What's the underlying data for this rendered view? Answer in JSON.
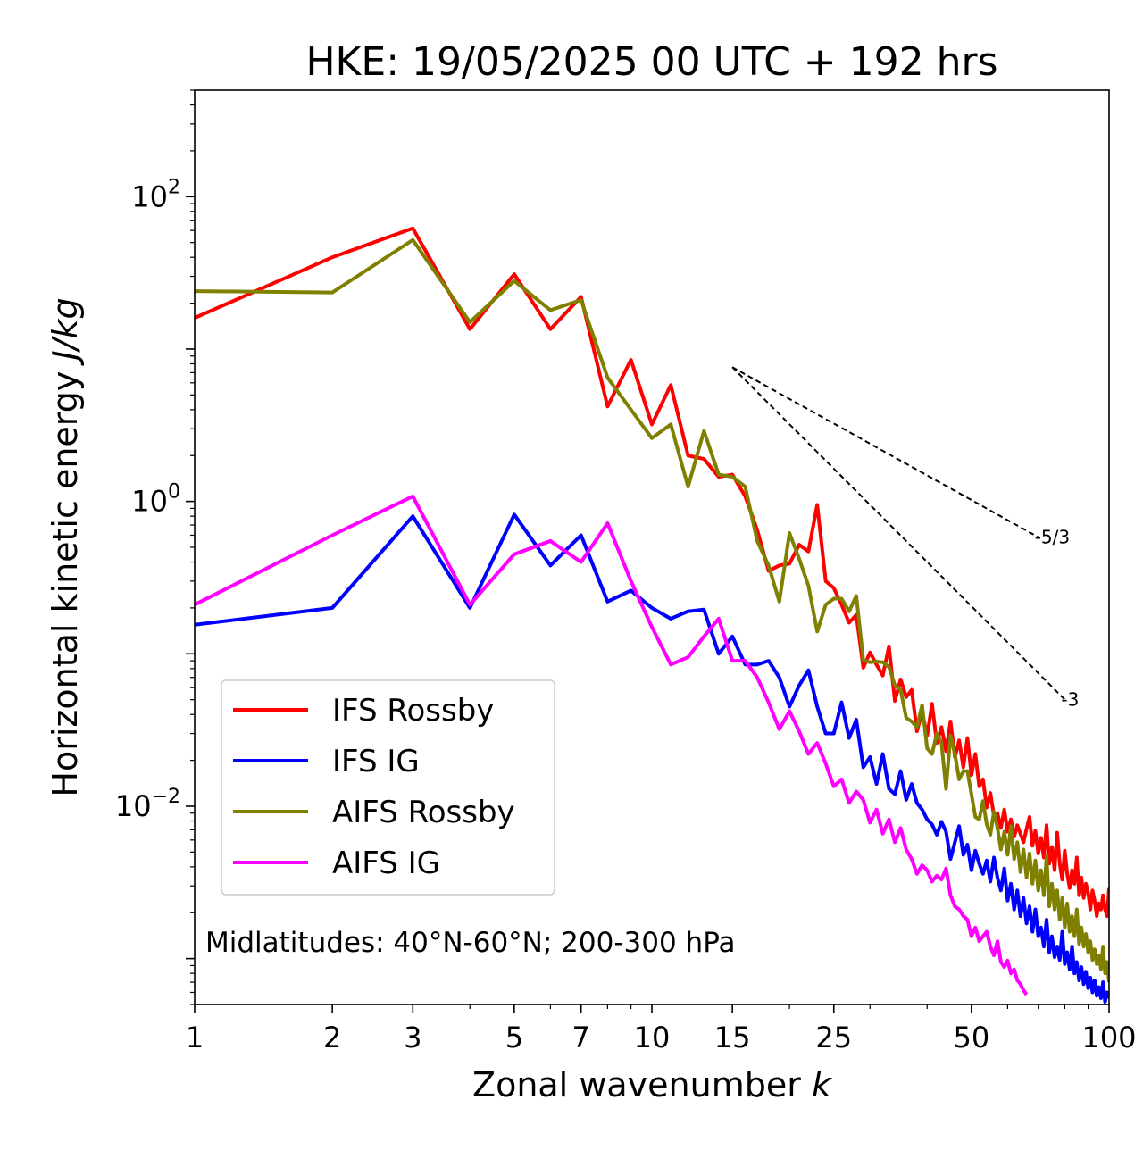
{
  "chart_data": {
    "type": "line",
    "title": "HKE: 19/05/2025 00 UTC + 192 hrs",
    "xlabel": "Zonal wavenumber",
    "xlabel_var": "k",
    "ylabel": "Horizontal kinetic energy",
    "ylabel_unit": "J/kg",
    "xscale": "log",
    "yscale": "log",
    "xlim": [
      1,
      100
    ],
    "ylim": [
      0.0005,
      500
    ],
    "x_ticks": [
      1,
      2,
      3,
      5,
      7,
      10,
      15,
      25,
      50,
      100
    ],
    "x_tick_labels": [
      "1",
      "2",
      "3",
      "5",
      "7",
      "10",
      "15",
      "25",
      "50",
      "100"
    ],
    "y_ticks": [
      0.01,
      1,
      100
    ],
    "y_tick_labels": [
      {
        "base": "10",
        "exp": "−2"
      },
      {
        "base": "10",
        "exp": "0"
      },
      {
        "base": "10",
        "exp": "2"
      }
    ],
    "annotation": "Midlatitudes: 40°N-60°N; 200-300 hPa",
    "legend_position": "lower-left",
    "grid": false,
    "reference_slopes": [
      {
        "label": "-5/3",
        "exponent": -1.6667,
        "x_start": 15,
        "x_end": 70,
        "y_start": 7.6
      },
      {
        "label": "-3",
        "exponent": -3,
        "x_start": 15,
        "x_end": 80,
        "y_start": 7.6
      }
    ],
    "series": [
      {
        "name": "IFS Rossby",
        "color": "#ff0000",
        "x": [
          1,
          2,
          3,
          4,
          5,
          6,
          7,
          8,
          9,
          10,
          11,
          12,
          13,
          14,
          15,
          16,
          17,
          18,
          19,
          20,
          21,
          22,
          23,
          24,
          25,
          26,
          27,
          28,
          29,
          30,
          31,
          32,
          33,
          34,
          35,
          36,
          37,
          38,
          39,
          40,
          41,
          42,
          43,
          44,
          45,
          46,
          47,
          48,
          49,
          50,
          51,
          52,
          53,
          54,
          55,
          56,
          57,
          58,
          59,
          60,
          61,
          62,
          63,
          64,
          65,
          66,
          67,
          68,
          69,
          70,
          71,
          72,
          73,
          74,
          75,
          76,
          77,
          78,
          79,
          80,
          81,
          82,
          83,
          84,
          85,
          86,
          87,
          88,
          89,
          90,
          91,
          92,
          93,
          94,
          95,
          96,
          97,
          98,
          99,
          100
        ],
        "y": [
          16,
          40,
          62,
          13.5,
          31,
          13.5,
          22,
          4.2,
          8.5,
          3.2,
          5.8,
          2.0,
          1.9,
          1.45,
          1.5,
          1.08,
          0.65,
          0.35,
          0.38,
          0.39,
          0.52,
          0.47,
          0.95,
          0.3,
          0.27,
          0.21,
          0.16,
          0.18,
          0.081,
          0.102,
          0.085,
          0.072,
          0.112,
          0.049,
          0.068,
          0.052,
          0.058,
          0.031,
          0.042,
          0.029,
          0.047,
          0.026,
          0.033,
          0.023,
          0.036,
          0.021,
          0.027,
          0.018,
          0.028,
          0.016,
          0.022,
          0.0135,
          0.015,
          0.0098,
          0.0122,
          0.0087,
          0.009,
          0.0072,
          0.0095,
          0.0068,
          0.0082,
          0.0063,
          0.0075,
          0.0066,
          0.0058,
          0.0071,
          0.0085,
          0.0055,
          0.0069,
          0.0049,
          0.0062,
          0.0046,
          0.0075,
          0.0042,
          0.0054,
          0.0038,
          0.0067,
          0.0042,
          0.0033,
          0.0051,
          0.0036,
          0.0029,
          0.0038,
          0.0031,
          0.0046,
          0.0026,
          0.0034,
          0.0025,
          0.0031,
          0.0027,
          0.0021,
          0.0028,
          0.0024,
          0.0019,
          0.0023,
          0.0021,
          0.0026,
          0.0021,
          0.0019,
          0.0029
        ]
      },
      {
        "name": "IFS IG",
        "color": "#0000ff",
        "x": [
          1,
          2,
          3,
          4,
          5,
          6,
          7,
          8,
          9,
          10,
          11,
          12,
          13,
          14,
          15,
          16,
          17,
          18,
          19,
          20,
          21,
          22,
          23,
          24,
          25,
          26,
          27,
          28,
          29,
          30,
          31,
          32,
          33,
          34,
          35,
          36,
          37,
          38,
          39,
          40,
          41,
          42,
          43,
          44,
          45,
          46,
          47,
          48,
          49,
          50,
          51,
          52,
          53,
          54,
          55,
          56,
          57,
          58,
          59,
          60,
          61,
          62,
          63,
          64,
          65,
          66,
          67,
          68,
          69,
          70,
          71,
          72,
          73,
          74,
          75,
          76,
          77,
          78,
          79,
          80,
          81,
          82,
          83,
          84,
          85,
          86,
          87,
          88,
          89,
          90,
          91,
          92,
          93,
          94,
          95,
          96,
          97,
          98,
          99,
          100
        ],
        "y": [
          0.155,
          0.2,
          0.8,
          0.2,
          0.82,
          0.38,
          0.6,
          0.22,
          0.26,
          0.2,
          0.17,
          0.19,
          0.195,
          0.1,
          0.13,
          0.085,
          0.085,
          0.09,
          0.07,
          0.045,
          0.062,
          0.078,
          0.045,
          0.03,
          0.03,
          0.048,
          0.028,
          0.037,
          0.018,
          0.021,
          0.014,
          0.022,
          0.013,
          0.012,
          0.017,
          0.011,
          0.014,
          0.0105,
          0.0095,
          0.0082,
          0.0076,
          0.0065,
          0.0079,
          0.0068,
          0.0045,
          0.0058,
          0.0074,
          0.0048,
          0.0056,
          0.0038,
          0.0051,
          0.0042,
          0.0036,
          0.0044,
          0.0032,
          0.0046,
          0.0034,
          0.0028,
          0.0039,
          0.0024,
          0.0031,
          0.0021,
          0.0028,
          0.0019,
          0.0025,
          0.0017,
          0.0022,
          0.0015,
          0.0021,
          0.0014,
          0.0016,
          0.0012,
          0.0018,
          0.0011,
          0.0014,
          0.00102,
          0.0012,
          0.00098,
          0.0015,
          0.00092,
          0.0011,
          0.00085,
          0.0012,
          0.0008,
          0.00095,
          0.00072,
          0.00088,
          0.00068,
          0.00082,
          0.00064,
          0.00075,
          0.0006,
          0.00072,
          0.00057,
          0.00065,
          0.00055,
          0.0007,
          0.00052,
          0.0006,
          0.00055
        ]
      },
      {
        "name": "AIFS Rossby",
        "color": "#808000",
        "x": [
          1,
          2,
          3,
          4,
          5,
          6,
          7,
          8,
          9,
          10,
          11,
          12,
          13,
          14,
          15,
          16,
          17,
          18,
          19,
          20,
          21,
          22,
          23,
          24,
          25,
          26,
          27,
          28,
          29,
          30,
          31,
          32,
          33,
          34,
          35,
          36,
          37,
          38,
          39,
          40,
          41,
          42,
          43,
          44,
          45,
          46,
          47,
          48,
          49,
          50,
          51,
          52,
          53,
          54,
          55,
          56,
          57,
          58,
          59,
          60,
          61,
          62,
          63,
          64,
          65,
          66,
          67,
          68,
          69,
          70,
          71,
          72,
          73,
          74,
          75,
          76,
          77,
          78,
          79,
          80,
          81,
          82,
          83,
          84,
          85,
          86,
          87,
          88,
          89,
          90,
          91,
          92,
          93,
          94,
          95,
          96,
          97,
          98,
          99,
          100
        ],
        "y": [
          24,
          23.5,
          52,
          15,
          28,
          18,
          21,
          6.5,
          4.0,
          2.6,
          3.2,
          1.25,
          2.9,
          1.5,
          1.45,
          1.25,
          0.55,
          0.38,
          0.22,
          0.62,
          0.42,
          0.28,
          0.14,
          0.21,
          0.23,
          0.23,
          0.19,
          0.24,
          0.091,
          0.088,
          0.089,
          0.088,
          0.082,
          0.062,
          0.058,
          0.038,
          0.036,
          0.033,
          0.046,
          0.024,
          0.022,
          0.03,
          0.026,
          0.013,
          0.029,
          0.022,
          0.015,
          0.017,
          0.017,
          0.012,
          0.0085,
          0.0082,
          0.0108,
          0.0076,
          0.0065,
          0.0092,
          0.0072,
          0.0052,
          0.0068,
          0.0048,
          0.0074,
          0.0045,
          0.0058,
          0.0037,
          0.0052,
          0.0034,
          0.0049,
          0.0031,
          0.0044,
          0.0028,
          0.0038,
          0.0026,
          0.0047,
          0.0022,
          0.0031,
          0.0021,
          0.0028,
          0.0018,
          0.0025,
          0.0016,
          0.0023,
          0.0015,
          0.0019,
          0.0014,
          0.0021,
          0.00125,
          0.0016,
          0.0012,
          0.00145,
          0.0011,
          0.0013,
          0.00098,
          0.00115,
          0.00092,
          0.00105,
          0.00085,
          0.0012,
          0.0008,
          0.00095,
          0.0007
        ]
      },
      {
        "name": "AIFS IG",
        "color": "#ff00ff",
        "x": [
          1,
          2,
          3,
          4,
          5,
          6,
          7,
          8,
          9,
          10,
          11,
          12,
          13,
          14,
          15,
          16,
          17,
          18,
          19,
          20,
          21,
          22,
          23,
          24,
          25,
          26,
          27,
          28,
          29,
          30,
          31,
          32,
          33,
          34,
          35,
          36,
          37,
          38,
          39,
          40,
          41,
          42,
          43,
          44,
          45,
          46,
          47,
          48,
          49,
          50,
          51,
          52,
          53,
          54,
          55,
          56,
          57,
          58,
          59,
          60,
          61,
          62,
          63,
          64,
          65,
          66
        ],
        "y": [
          0.21,
          0.6,
          1.08,
          0.21,
          0.45,
          0.55,
          0.4,
          0.72,
          0.3,
          0.15,
          0.085,
          0.095,
          0.13,
          0.17,
          0.09,
          0.09,
          0.07,
          0.048,
          0.032,
          0.042,
          0.031,
          0.022,
          0.026,
          0.019,
          0.0135,
          0.015,
          0.0105,
          0.0125,
          0.011,
          0.0078,
          0.0095,
          0.0066,
          0.0082,
          0.0058,
          0.0072,
          0.0052,
          0.0045,
          0.0036,
          0.0041,
          0.0038,
          0.0032,
          0.0035,
          0.0033,
          0.0039,
          0.0026,
          0.0022,
          0.0021,
          0.0019,
          0.0018,
          0.0014,
          0.0016,
          0.0013,
          0.0014,
          0.0015,
          0.0012,
          0.00105,
          0.0013,
          0.00095,
          0.00088,
          0.00097,
          0.0008,
          0.00085,
          0.00072,
          0.00068,
          0.00062,
          0.00058
        ]
      }
    ]
  }
}
